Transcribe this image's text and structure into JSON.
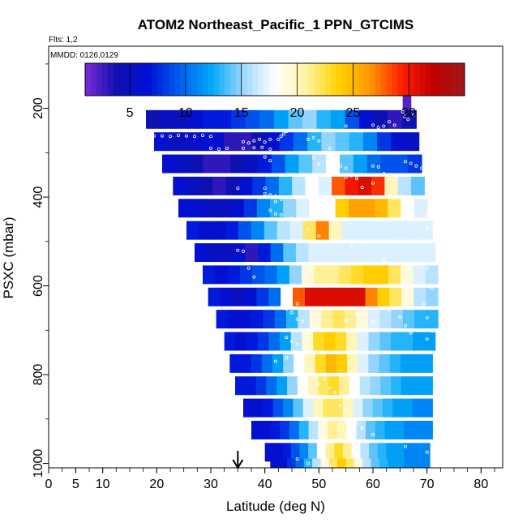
{
  "chart_data": {
    "type": "heatmap",
    "title": "ATOM2 Northeast_Pacific_1 PPN_GTCIMS",
    "flights_text": "Flts: 1,2",
    "dates_text": "MMDD: 0126,0129",
    "xlabel": "Latitude (deg N)",
    "ylabel": "PSXC (mbar)",
    "xlim": [
      0,
      84
    ],
    "ylim": [
      1010,
      60
    ],
    "y_reversed": true,
    "x_ticks": [
      0,
      5,
      10,
      20,
      30,
      40,
      50,
      60,
      70,
      80
    ],
    "y_ticks": [
      200,
      400,
      600,
      800,
      1000
    ],
    "colorbar": {
      "min": 1,
      "max": 35,
      "ticks": [
        5,
        10,
        15,
        20,
        25,
        30
      ],
      "palette": [
        "#7b2bd6",
        "#1010b0",
        "#0010d8",
        "#0060f0",
        "#00a8f8",
        "#9cd8ff",
        "#ffffff",
        "#fff2a0",
        "#ffd400",
        "#ff9800",
        "#ff2000",
        "#c00000",
        "#a01818"
      ]
    },
    "arrow_latitude": 35,
    "grid": false,
    "legend": "colorbar-top",
    "bins": [
      {
        "p": 192,
        "lat": [
          65.5,
          67
        ],
        "v": [
          2
        ]
      },
      {
        "p": 225,
        "lat": [
          18,
          68
        ],
        "v": [
          4,
          5,
          5,
          6,
          7,
          7,
          8,
          9,
          10,
          12,
          14,
          15,
          13,
          12,
          9,
          6,
          4,
          3,
          4
        ]
      },
      {
        "p": 275,
        "lat": [
          19.5,
          68.5
        ],
        "v": [
          6,
          5,
          5,
          6,
          6,
          3,
          3,
          4,
          6,
          8,
          10,
          13,
          15,
          14,
          13,
          11,
          8,
          6,
          5
        ]
      },
      {
        "p": 325,
        "lat": [
          21,
          69
        ],
        "v": [
          6,
          5,
          4,
          3,
          3,
          4,
          5,
          7,
          9,
          12,
          14,
          16,
          18,
          14,
          12,
          10,
          9,
          9,
          8
        ]
      },
      {
        "p": 375,
        "lat": [
          23,
          69.5
        ],
        "v": [
          6,
          5,
          4,
          3,
          4,
          6,
          8,
          10,
          13,
          16,
          18,
          17,
          28,
          30,
          31,
          29,
          20,
          16,
          14
        ]
      },
      {
        "p": 425,
        "lat": [
          24,
          70
        ],
        "v": [
          6,
          6,
          5,
          5,
          6,
          8,
          11,
          13,
          15,
          17,
          18,
          18,
          24,
          26,
          26,
          25,
          22,
          18,
          17
        ]
      },
      {
        "p": 475,
        "lat": [
          25.5,
          71
        ],
        "v": [
          7,
          6,
          6,
          7,
          9,
          11,
          14,
          16,
          17,
          22,
          27,
          20,
          17,
          17,
          17,
          17,
          17,
          17,
          17
        ]
      },
      {
        "p": 525,
        "lat": [
          27,
          71.5
        ],
        "v": [
          6,
          5,
          5,
          6,
          3,
          7,
          10,
          14,
          16,
          17,
          17,
          17,
          17,
          17,
          17,
          17,
          17,
          17,
          17
        ]
      },
      {
        "p": 575,
        "lat": [
          28.5,
          72
        ],
        "v": [
          7,
          6,
          7,
          8,
          9,
          10,
          12,
          15,
          19,
          21,
          21,
          22,
          23,
          24,
          24,
          22,
          19,
          17,
          16
        ]
      },
      {
        "p": 625,
        "lat": [
          29.5,
          72
        ],
        "v": [
          7,
          6,
          5,
          6,
          8,
          10,
          18,
          28,
          31,
          31,
          31,
          31,
          31,
          27,
          24,
          22,
          19,
          16,
          15
        ]
      },
      {
        "p": 675,
        "lat": [
          31,
          72
        ],
        "v": [
          7,
          6,
          6,
          7,
          8,
          10,
          13,
          16,
          19,
          21,
          22,
          21,
          19,
          17,
          16,
          15,
          14,
          13,
          13
        ]
      },
      {
        "p": 725,
        "lat": [
          32.5,
          71.5
        ],
        "v": [
          7,
          6,
          7,
          8,
          10,
          12,
          16,
          19,
          23,
          24,
          23,
          20,
          17,
          15,
          14,
          13,
          13,
          12,
          12
        ]
      },
      {
        "p": 775,
        "lat": [
          33.5,
          71
        ],
        "v": [
          7,
          7,
          8,
          10,
          12,
          15,
          18,
          20,
          23,
          25,
          24,
          20,
          17,
          15,
          14,
          13,
          12,
          12,
          12
        ]
      },
      {
        "p": 825,
        "lat": [
          34.5,
          71
        ],
        "v": [
          7,
          7,
          8,
          10,
          12,
          15,
          18,
          20,
          22,
          23,
          21,
          18,
          16,
          15,
          14,
          13,
          12,
          12,
          12
        ]
      },
      {
        "p": 875,
        "lat": [
          36,
          71
        ],
        "v": [
          6,
          6,
          7,
          9,
          11,
          14,
          17,
          20,
          22,
          22,
          20,
          17,
          15,
          14,
          13,
          12,
          12,
          11,
          11
        ]
      },
      {
        "p": 925,
        "lat": [
          37.5,
          71
        ],
        "v": [
          6,
          6,
          7,
          8,
          10,
          13,
          16,
          19,
          21,
          20,
          18,
          16,
          14,
          13,
          12,
          12,
          11,
          11,
          11
        ]
      },
      {
        "p": 975,
        "lat": [
          40,
          70.5
        ],
        "v": [
          6,
          6,
          7,
          9,
          11,
          14,
          18,
          21,
          23,
          21,
          18,
          16,
          14,
          13,
          12,
          12,
          11,
          11,
          11
        ]
      },
      {
        "p": 1010,
        "lat": [
          41,
          70.5
        ],
        "v": [
          6,
          6,
          8,
          10,
          13,
          16,
          19,
          22,
          24,
          22,
          19,
          16,
          14,
          13,
          12,
          12,
          11,
          11,
          11
        ]
      }
    ],
    "points": [
      [
        18,
        260
      ],
      [
        19.5,
        262
      ],
      [
        21,
        262
      ],
      [
        22.5,
        263
      ],
      [
        24,
        261
      ],
      [
        25.5,
        262
      ],
      [
        27,
        263
      ],
      [
        28.5,
        261
      ],
      [
        30,
        263
      ],
      [
        30,
        290
      ],
      [
        31.5,
        292
      ],
      [
        33,
        290
      ],
      [
        36,
        290
      ],
      [
        38,
        289
      ],
      [
        39.5,
        288
      ],
      [
        41,
        292
      ],
      [
        42.5,
        270
      ],
      [
        43,
        263
      ],
      [
        43.5,
        258
      ],
      [
        44,
        252
      ],
      [
        36,
        275
      ],
      [
        37,
        278
      ],
      [
        38,
        273
      ],
      [
        39,
        270
      ],
      [
        40,
        276
      ],
      [
        41,
        270
      ],
      [
        48,
        270
      ],
      [
        49,
        266
      ],
      [
        50,
        273
      ],
      [
        52,
        290
      ],
      [
        55,
        240
      ],
      [
        60,
        238
      ],
      [
        61,
        243
      ],
      [
        62,
        240
      ],
      [
        63,
        230
      ],
      [
        64,
        238
      ],
      [
        65.5,
        208
      ],
      [
        65.8,
        218
      ],
      [
        66.5,
        225
      ],
      [
        67.5,
        215
      ],
      [
        68.5,
        232
      ],
      [
        40,
        310
      ],
      [
        41,
        318
      ],
      [
        42,
        300
      ],
      [
        48,
        300
      ],
      [
        49,
        312
      ],
      [
        50,
        325
      ],
      [
        52,
        340
      ],
      [
        54,
        330
      ],
      [
        55,
        335
      ],
      [
        55,
        355
      ],
      [
        56,
        352
      ],
      [
        57,
        358
      ],
      [
        58,
        378
      ],
      [
        60,
        368
      ],
      [
        60,
        330
      ],
      [
        61,
        332
      ],
      [
        62,
        347
      ],
      [
        66,
        320
      ],
      [
        67,
        324
      ],
      [
        68,
        330
      ],
      [
        69,
        335
      ],
      [
        35,
        380
      ],
      [
        40,
        380
      ],
      [
        40,
        392
      ],
      [
        41,
        395
      ],
      [
        42,
        398
      ],
      [
        42,
        410
      ],
      [
        43,
        405
      ],
      [
        41,
        430
      ],
      [
        42,
        438
      ],
      [
        43,
        440
      ],
      [
        44,
        450
      ],
      [
        45,
        448
      ],
      [
        46,
        452
      ],
      [
        48,
        472
      ],
      [
        50,
        488
      ],
      [
        56,
        510
      ],
      [
        60,
        500
      ],
      [
        62,
        540
      ],
      [
        70,
        470
      ],
      [
        71,
        473
      ],
      [
        70,
        440
      ],
      [
        70,
        560
      ],
      [
        70.5,
        602
      ],
      [
        71,
        605
      ],
      [
        69.5,
        640
      ],
      [
        70,
        672
      ],
      [
        71,
        702
      ],
      [
        70,
        720
      ],
      [
        43,
        648
      ],
      [
        46,
        640
      ],
      [
        50,
        650
      ],
      [
        55,
        677
      ],
      [
        57,
        660
      ],
      [
        60,
        680
      ],
      [
        63,
        655
      ],
      [
        65,
        670
      ],
      [
        66,
        690
      ],
      [
        67,
        706
      ],
      [
        44,
        652
      ],
      [
        45,
        660
      ],
      [
        46,
        675
      ],
      [
        47,
        680
      ],
      [
        43,
        700
      ],
      [
        44,
        716
      ],
      [
        45,
        725
      ],
      [
        46,
        732
      ],
      [
        42,
        770
      ],
      [
        44,
        762
      ],
      [
        50,
        820
      ],
      [
        51,
        810
      ],
      [
        52,
        830
      ],
      [
        53,
        840
      ],
      [
        54,
        870
      ],
      [
        55,
        880
      ],
      [
        56,
        900
      ],
      [
        57,
        910
      ],
      [
        58,
        920
      ],
      [
        60,
        935
      ],
      [
        63,
        950
      ],
      [
        66,
        962
      ],
      [
        70,
        975
      ],
      [
        71,
        985
      ],
      [
        46,
        990
      ],
      [
        48,
        1000
      ],
      [
        52,
        1005
      ],
      [
        57,
        998
      ],
      [
        35,
        520
      ],
      [
        36,
        522
      ],
      [
        37,
        560
      ],
      [
        38,
        580
      ]
    ]
  }
}
